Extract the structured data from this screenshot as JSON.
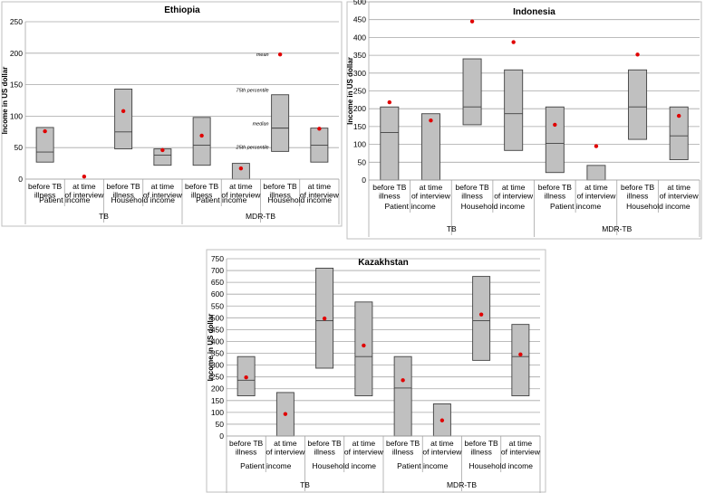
{
  "chart_data": [
    {
      "type": "boxplot",
      "title": "Ethiopia",
      "ylabel": "Income in US dollar",
      "ylim": [
        0,
        250
      ],
      "yticks": [
        0,
        50,
        100,
        150,
        200,
        250
      ],
      "grid": true,
      "boxes": [
        {
          "category": "before TB illness",
          "income_type": "Patient income",
          "group": "TB",
          "p25": 27,
          "median": 43,
          "p75": 82,
          "mean": 76
        },
        {
          "category": "at time of interview",
          "income_type": "Patient income",
          "group": "TB",
          "p25": 0,
          "median": 0,
          "p75": 0,
          "mean": 4
        },
        {
          "category": "before TB illness",
          "income_type": "Household income",
          "group": "TB",
          "p25": 48,
          "median": 75,
          "p75": 143,
          "mean": 108
        },
        {
          "category": "at time of interview",
          "income_type": "Household income",
          "group": "TB",
          "p25": 22,
          "median": 38,
          "p75": 48,
          "mean": 46
        },
        {
          "category": "before TB illness",
          "income_type": "Patient income",
          "group": "MDR-TB",
          "p25": 22,
          "median": 54,
          "p75": 98,
          "mean": 69
        },
        {
          "category": "at time of interview",
          "income_type": "Patient income",
          "group": "MDR-TB",
          "p25": 0,
          "median": 0,
          "p75": 25,
          "mean": 17
        },
        {
          "category": "before TB illness",
          "income_type": "Household income",
          "group": "MDR-TB",
          "p25": 44,
          "median": 81,
          "p75": 134,
          "mean": 198
        },
        {
          "category": "at time of interview",
          "income_type": "Household income",
          "group": "MDR-TB",
          "p25": 27,
          "median": 54,
          "p75": 81,
          "mean": 80
        }
      ],
      "annotations": {
        "mean": "mean",
        "p75": "75th percentile",
        "median": "median",
        "p25": "25th percentile"
      }
    },
    {
      "type": "boxplot",
      "title": "Indonesia",
      "ylabel": "Income in US dollar",
      "ylim": [
        0,
        500
      ],
      "yticks": [
        0,
        50,
        100,
        150,
        200,
        250,
        300,
        350,
        400,
        450,
        500
      ],
      "grid": true,
      "boxes": [
        {
          "category": "before TB illness",
          "income_type": "Patient income",
          "group": "TB",
          "p25": 0,
          "median": 133,
          "p75": 205,
          "mean": 218
        },
        {
          "category": "at time of interview",
          "income_type": "Patient income",
          "group": "TB",
          "p25": 0,
          "median": 0,
          "p75": 186,
          "mean": 167
        },
        {
          "category": "before TB illness",
          "income_type": "Household income",
          "group": "TB",
          "p25": 155,
          "median": 205,
          "p75": 340,
          "mean": 445
        },
        {
          "category": "at time of interview",
          "income_type": "Household income",
          "group": "TB",
          "p25": 83,
          "median": 186,
          "p75": 309,
          "mean": 387
        },
        {
          "category": "before TB illness",
          "income_type": "Patient income",
          "group": "MDR-TB",
          "p25": 21,
          "median": 103,
          "p75": 205,
          "mean": 155
        },
        {
          "category": "at time of interview",
          "income_type": "Patient income",
          "group": "MDR-TB",
          "p25": 0,
          "median": 0,
          "p75": 41,
          "mean": 95
        },
        {
          "category": "before TB illness",
          "income_type": "Household income",
          "group": "MDR-TB",
          "p25": 114,
          "median": 205,
          "p75": 309,
          "mean": 352
        },
        {
          "category": "at time of interview",
          "income_type": "Household income",
          "group": "MDR-TB",
          "p25": 57,
          "median": 124,
          "p75": 205,
          "mean": 180
        }
      ]
    },
    {
      "type": "boxplot",
      "title": "Kazakhstan",
      "ylabel": "Income in US dollar",
      "ylim": [
        0,
        750
      ],
      "yticks": [
        0,
        50,
        100,
        150,
        200,
        250,
        300,
        350,
        400,
        450,
        500,
        550,
        600,
        650,
        700,
        750
      ],
      "grid": true,
      "boxes": [
        {
          "category": "before TB illness",
          "income_type": "Patient income",
          "group": "TB",
          "p25": 170,
          "median": 236,
          "p75": 336,
          "mean": 248
        },
        {
          "category": "at time of interview",
          "income_type": "Patient income",
          "group": "TB",
          "p25": 0,
          "median": 0,
          "p75": 184,
          "mean": 93
        },
        {
          "category": "before TB illness",
          "income_type": "Household income",
          "group": "TB",
          "p25": 287,
          "median": 488,
          "p75": 710,
          "mean": 497
        },
        {
          "category": "at time of interview",
          "income_type": "Household income",
          "group": "TB",
          "p25": 170,
          "median": 336,
          "p75": 567,
          "mean": 383
        },
        {
          "category": "before TB illness",
          "income_type": "Patient income",
          "group": "MDR-TB",
          "p25": 0,
          "median": 203,
          "p75": 336,
          "mean": 236
        },
        {
          "category": "at time of interview",
          "income_type": "Patient income",
          "group": "MDR-TB",
          "p25": 0,
          "median": 0,
          "p75": 136,
          "mean": 66
        },
        {
          "category": "before TB illness",
          "income_type": "Household income",
          "group": "MDR-TB",
          "p25": 320,
          "median": 488,
          "p75": 675,
          "mean": 514
        },
        {
          "category": "at time of interview",
          "income_type": "Household income",
          "group": "MDR-TB",
          "p25": 170,
          "median": 336,
          "p75": 472,
          "mean": 345
        }
      ]
    }
  ]
}
